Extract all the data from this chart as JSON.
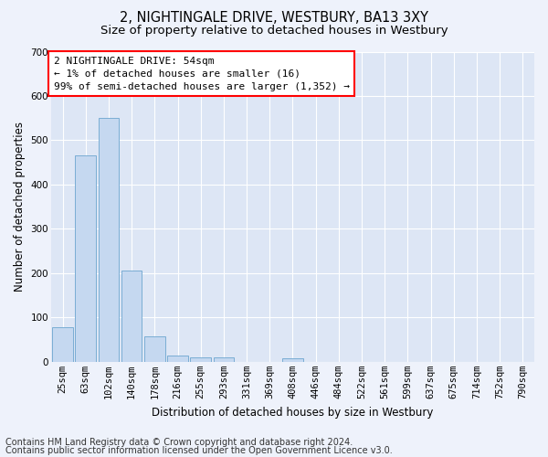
{
  "title": "2, NIGHTINGALE DRIVE, WESTBURY, BA13 3XY",
  "subtitle": "Size of property relative to detached houses in Westbury",
  "xlabel": "Distribution of detached houses by size in Westbury",
  "ylabel": "Number of detached properties",
  "bar_labels": [
    "25sqm",
    "63sqm",
    "102sqm",
    "140sqm",
    "178sqm",
    "216sqm",
    "255sqm",
    "293sqm",
    "331sqm",
    "369sqm",
    "408sqm",
    "446sqm",
    "484sqm",
    "522sqm",
    "561sqm",
    "599sqm",
    "637sqm",
    "675sqm",
    "714sqm",
    "752sqm",
    "790sqm"
  ],
  "bar_values": [
    78,
    465,
    550,
    205,
    58,
    15,
    10,
    10,
    0,
    0,
    8,
    0,
    0,
    0,
    0,
    0,
    0,
    0,
    0,
    0,
    0
  ],
  "bar_color": "#c5d8f0",
  "bar_edge_color": "#7aadd4",
  "ylim": [
    0,
    700
  ],
  "yticks": [
    0,
    100,
    200,
    300,
    400,
    500,
    600,
    700
  ],
  "annotation_box_text": "2 NIGHTINGALE DRIVE: 54sqm\n← 1% of detached houses are smaller (16)\n99% of semi-detached houses are larger (1,352) →",
  "footer_line1": "Contains HM Land Registry data © Crown copyright and database right 2024.",
  "footer_line2": "Contains public sector information licensed under the Open Government Licence v3.0.",
  "bg_color": "#eef2fb",
  "plot_bg_color": "#dde6f5",
  "grid_color": "#ffffff",
  "title_fontsize": 10.5,
  "subtitle_fontsize": 9.5,
  "axis_label_fontsize": 8.5,
  "tick_fontsize": 7.5,
  "annotation_fontsize": 8,
  "footer_fontsize": 7
}
